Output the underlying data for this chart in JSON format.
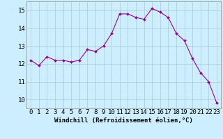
{
  "x": [
    0,
    1,
    2,
    3,
    4,
    5,
    6,
    7,
    8,
    9,
    10,
    11,
    12,
    13,
    14,
    15,
    16,
    17,
    18,
    19,
    20,
    21,
    22,
    23
  ],
  "y": [
    12.2,
    11.9,
    12.4,
    12.2,
    12.2,
    12.1,
    12.2,
    12.8,
    12.7,
    13.0,
    13.7,
    14.8,
    14.8,
    14.6,
    14.5,
    15.1,
    14.9,
    14.6,
    13.7,
    13.3,
    12.3,
    11.5,
    11.0,
    9.8
  ],
  "line_color": "#990099",
  "marker": "D",
  "marker_size": 2.0,
  "bg_color": "#cceeff",
  "grid_color": "#aacccc",
  "xlabel": "Windchill (Refroidissement éolien,°C)",
  "xlabel_fontsize": 6.5,
  "tick_fontsize": 6.5,
  "ylim": [
    9.5,
    15.5
  ],
  "xlim": [
    -0.5,
    23.5
  ],
  "yticks": [
    10,
    11,
    12,
    13,
    14,
    15
  ],
  "xticks": [
    0,
    1,
    2,
    3,
    4,
    5,
    6,
    7,
    8,
    9,
    10,
    11,
    12,
    13,
    14,
    15,
    16,
    17,
    18,
    19,
    20,
    21,
    22,
    23
  ]
}
